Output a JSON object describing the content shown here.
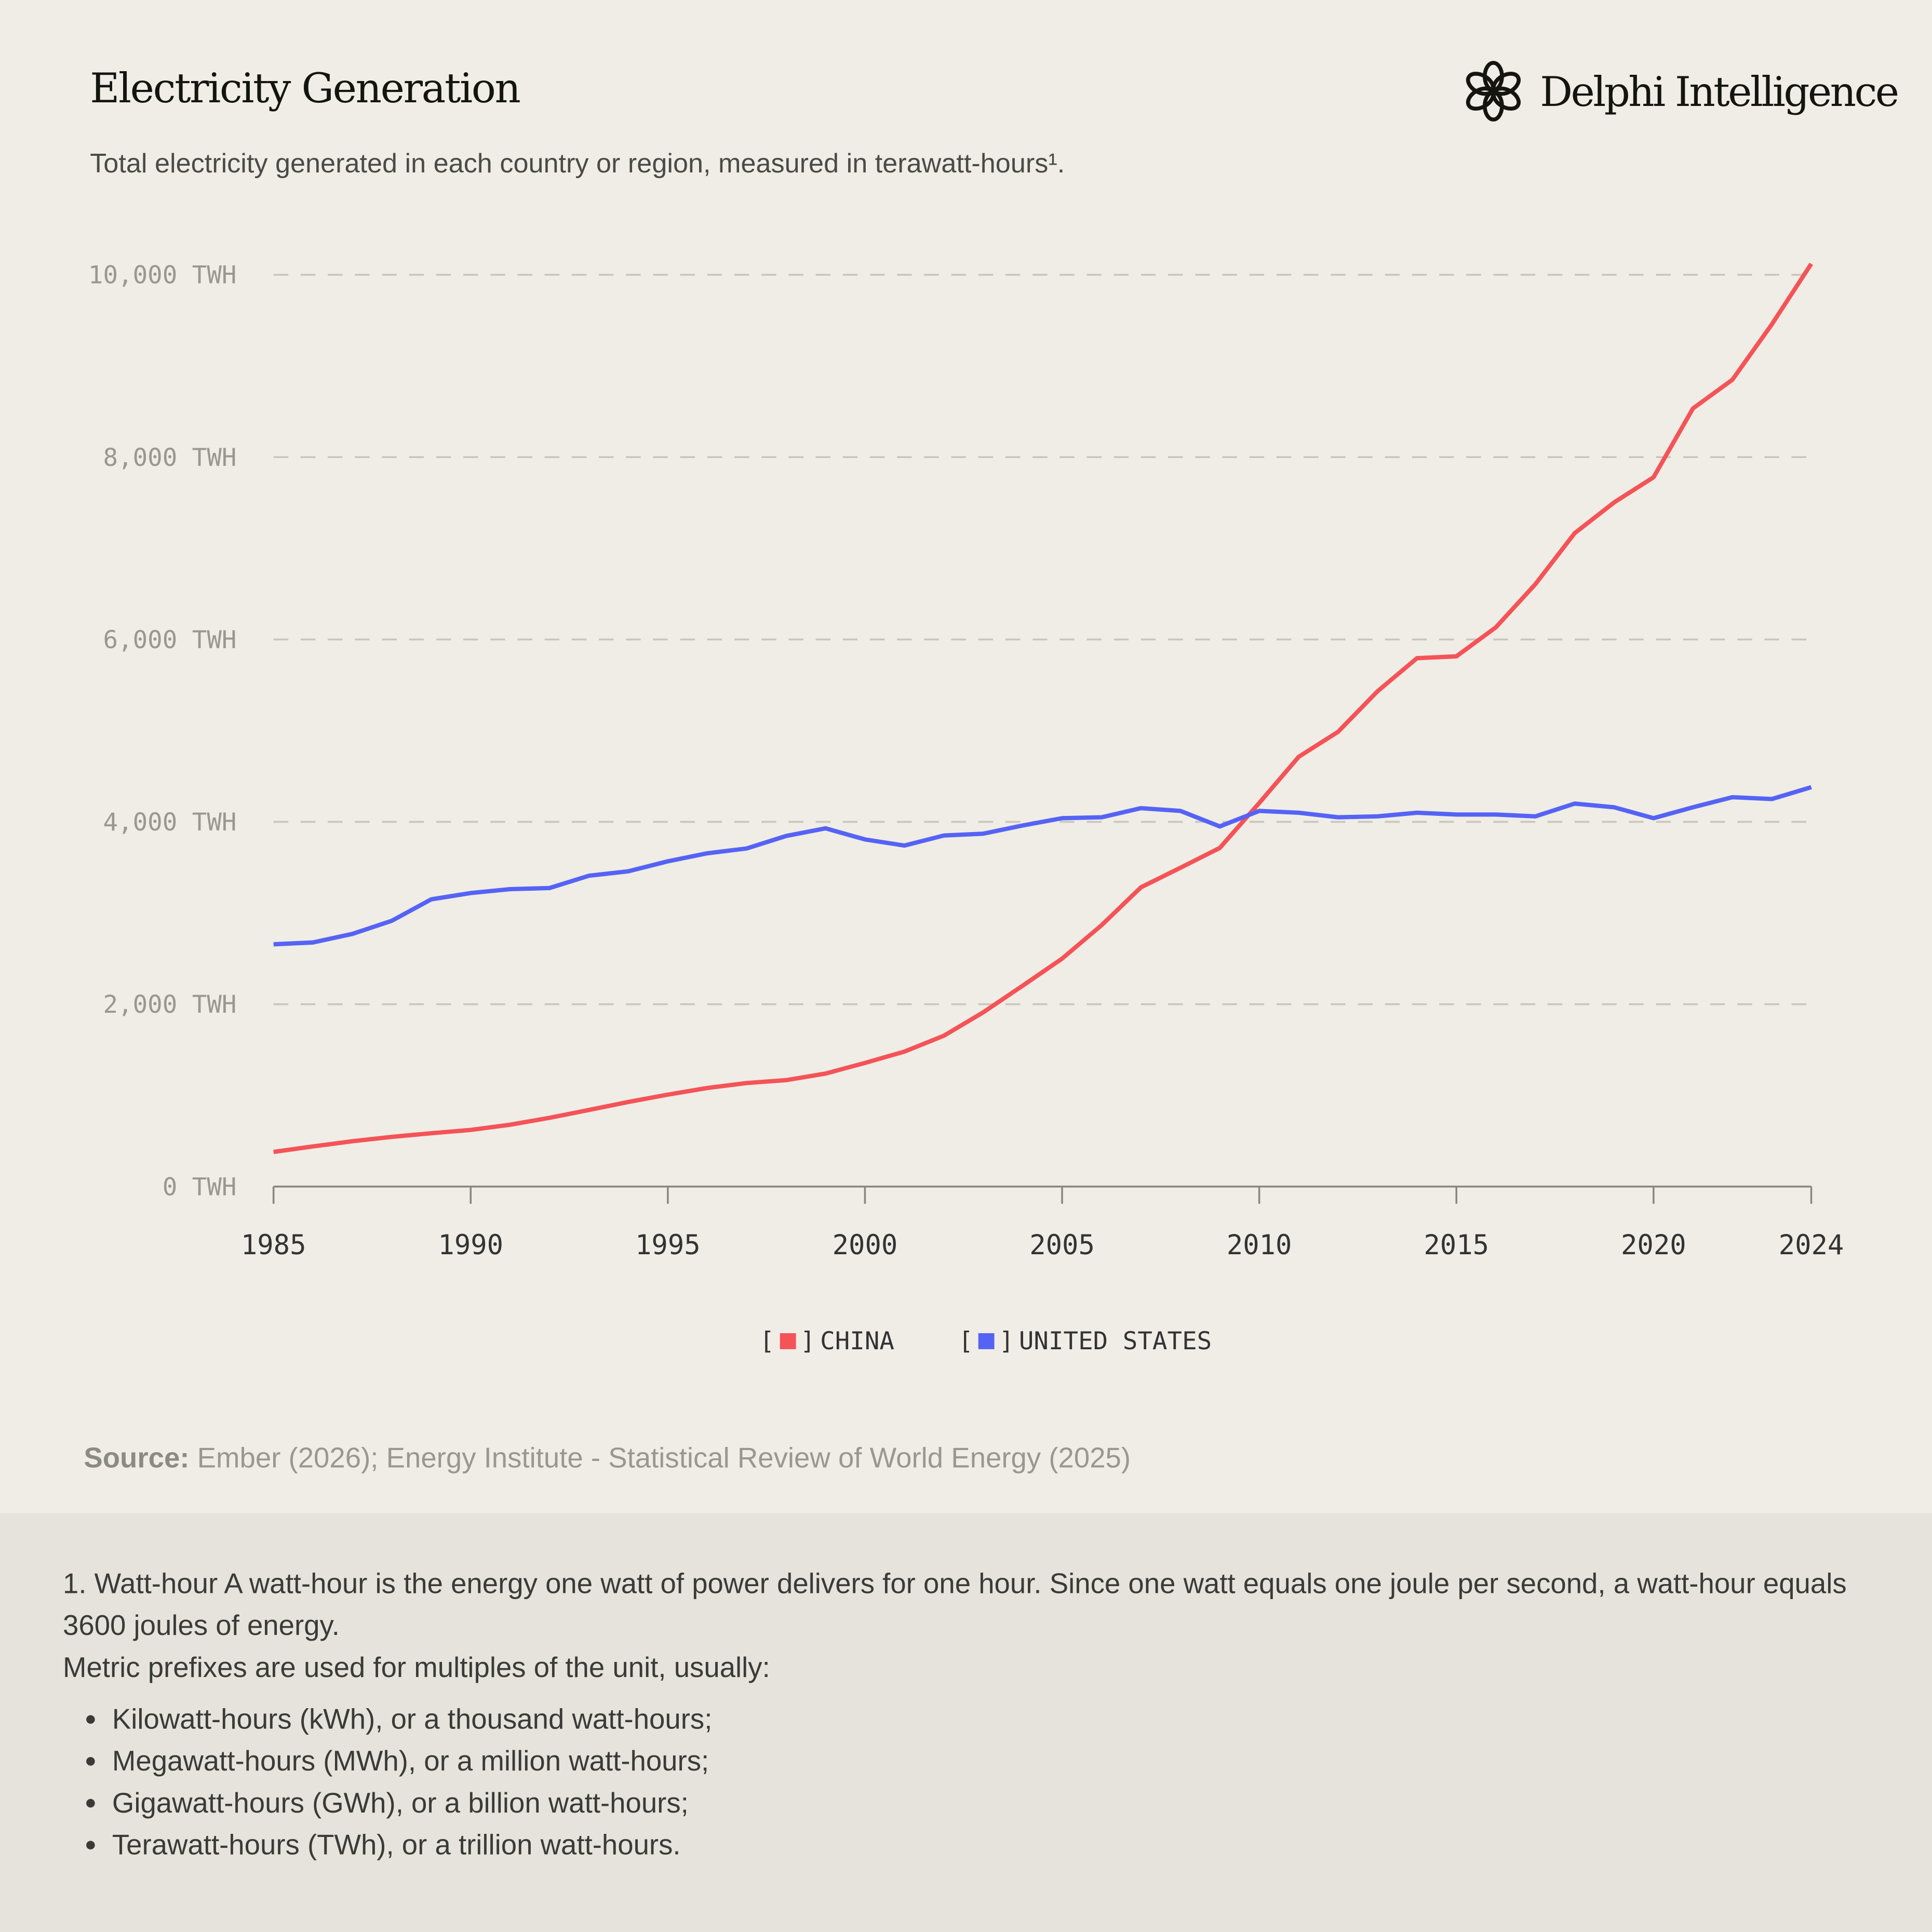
{
  "header": {
    "title": "Electricity Generation",
    "brand": "Delphi Intelligence",
    "subtitle": "Total electricity generated in each country or region, measured in terawatt-hours¹."
  },
  "chart_data": {
    "type": "line",
    "title": "Electricity Generation",
    "xlabel": "",
    "ylabel": "",
    "xlim": [
      1985,
      2024
    ],
    "ylim": [
      0,
      10000
    ],
    "x_ticks": [
      "1985",
      "1990",
      "1995",
      "2000",
      "2005",
      "2010",
      "2015",
      "2020",
      "2024"
    ],
    "y_ticks": [
      "0 TWH",
      "2,000 TWH",
      "4,000 TWH",
      "6,000 TWH",
      "8,000 TWH",
      "10,000 TWH"
    ],
    "y_tick_values": [
      0,
      2000,
      4000,
      6000,
      8000,
      10000
    ],
    "grid": true,
    "legend_position": "bottom-center",
    "x": [
      1985,
      1986,
      1987,
      1988,
      1989,
      1990,
      1991,
      1992,
      1993,
      1994,
      1995,
      1996,
      1997,
      1998,
      1999,
      2000,
      2001,
      2002,
      2003,
      2004,
      2005,
      2006,
      2007,
      2008,
      2009,
      2010,
      2011,
      2012,
      2013,
      2014,
      2015,
      2016,
      2017,
      2018,
      2019,
      2020,
      2021,
      2022,
      2023,
      2024
    ],
    "series": [
      {
        "name": "CHINA",
        "color": "#f45357",
        "values": [
          380,
          440,
          497,
          545,
          585,
          621,
          678,
          754,
          840,
          928,
          1008,
          1081,
          1135,
          1167,
          1239,
          1356,
          1480,
          1654,
          1911,
          2203,
          2500,
          2866,
          3282,
          3496,
          3714,
          4207,
          4713,
          4988,
          5432,
          5795,
          5815,
          6133,
          6605,
          7166,
          7503,
          7779,
          8534,
          8849,
          9456,
          10120
        ]
      },
      {
        "name": "UNITED STATES",
        "color": "#5563f5",
        "values": [
          2657,
          2677,
          2771,
          2915,
          3150,
          3219,
          3262,
          3274,
          3409,
          3458,
          3567,
          3655,
          3708,
          3845,
          3929,
          3807,
          3740,
          3850,
          3870,
          3960,
          4040,
          4050,
          4150,
          4120,
          3950,
          4120,
          4100,
          4050,
          4060,
          4100,
          4080,
          4080,
          4060,
          4200,
          4160,
          4040,
          4160,
          4270,
          4250,
          4380
        ]
      }
    ]
  },
  "source": {
    "label": "Source:",
    "text": " Ember (2026); Energy Institute - Statistical Review of World Energy (2025)"
  },
  "footnote": {
    "line1": "1. Watt-hour A watt-hour is the energy one watt of power delivers for one hour. Since one watt equals one joule per second, a watt-hour equals 3600 joules of energy.",
    "line2": "Metric prefixes are used for multiples of the unit, usually:",
    "items": [
      "Kilowatt-hours (kWh), or a thousand watt-hours;",
      "Megawatt-hours (MWh), or a million watt-hours;",
      "Gigawatt-hours (GWh), or a billion watt-hours;",
      "Terawatt-hours (TWh), or a trillion watt-hours."
    ]
  }
}
